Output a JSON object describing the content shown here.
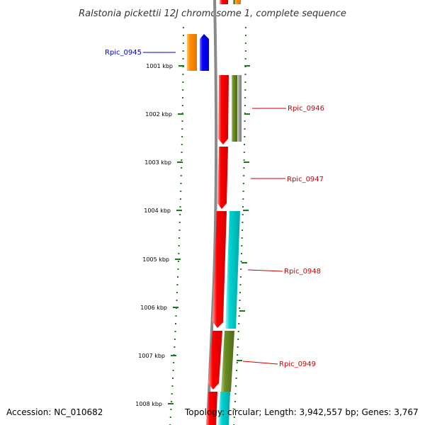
{
  "title": "Ralstonia pickettii 12J chromosome 1, complete sequence",
  "ruler": {
    "unit": "kbp",
    "labels": [
      "1001 kbp",
      "1002 kbp",
      "1003 kbp",
      "1004 kbp",
      "1005 kbp",
      "1006 kbp",
      "1007 kbp",
      "1008 kbp"
    ]
  },
  "genes": [
    {
      "label": "Rpic_0945",
      "color": "#0000cc"
    },
    {
      "label": "Rpic_0946",
      "color": "#cc0000"
    },
    {
      "label": "Rpic_0947",
      "color": "#cc0000"
    },
    {
      "label": "Rpic_0948",
      "color": "#cc0000"
    },
    {
      "label": "Rpic_0949",
      "color": "#cc0000"
    }
  ],
  "colors": {
    "forward_cds": "#ff0000",
    "reverse_cds": "#0000ff",
    "orange_feature": "#ff8c00",
    "olive_feature": "#6b8e23",
    "cyan_feature": "#00cccc",
    "gray_feature": "#a0a0a0",
    "backbone": "#808080",
    "ruler_ticks": "#006400"
  },
  "footer": {
    "accession": "Accession: NC_010682",
    "summary": "Topology: circular; Length: 3,942,557 bp; Genes: 3,767"
  }
}
